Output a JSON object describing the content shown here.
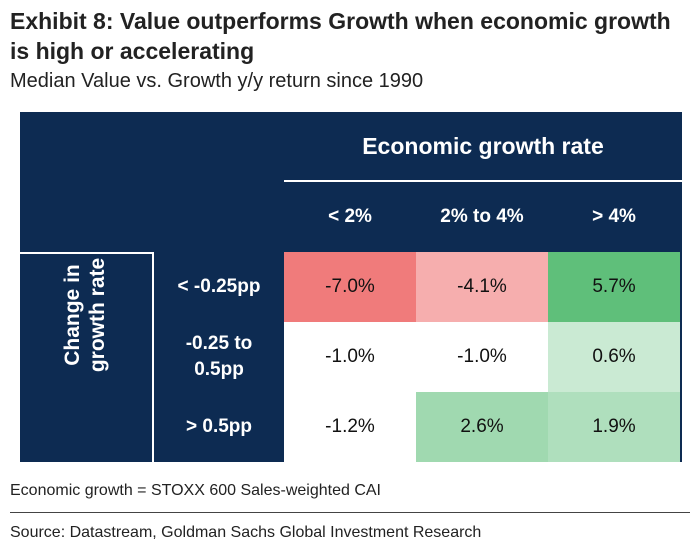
{
  "title": "Exhibit 8: Value outperforms Growth when economic growth is high or accelerating",
  "subtitle": "Median Value vs. Growth y/y return since 1990",
  "note": "Economic growth = STOXX 600 Sales-weighted CAI",
  "source": "Source: Datastream, Goldman Sachs Global Investment Research",
  "chart_data": {
    "type": "table",
    "column_header": "Economic growth rate",
    "row_header": "Change in growth rate",
    "columns": [
      "< 2%",
      "2% to 4%",
      "> 4%"
    ],
    "rows": [
      {
        "label_lines": [
          "< -0.25pp"
        ],
        "values": [
          -7.0,
          -4.1,
          5.7
        ],
        "labels": [
          "-7.0%",
          "-4.1%",
          "5.7%"
        ]
      },
      {
        "label_lines": [
          "-0.25 to",
          "0.5pp"
        ],
        "values": [
          -1.0,
          -1.0,
          0.6
        ],
        "labels": [
          "-1.0%",
          "-1.0%",
          "0.6%"
        ]
      },
      {
        "label_lines": [
          "> 0.5pp"
        ],
        "values": [
          -1.2,
          2.6,
          1.9
        ],
        "labels": [
          "-1.2%",
          "2.6%",
          "1.9%"
        ]
      }
    ],
    "colors": {
      "panel": "#0d2b52",
      "negative_strong": "#f07b7b",
      "positive_strong": "#5fbf7a",
      "neutral": "#ffffff"
    }
  }
}
